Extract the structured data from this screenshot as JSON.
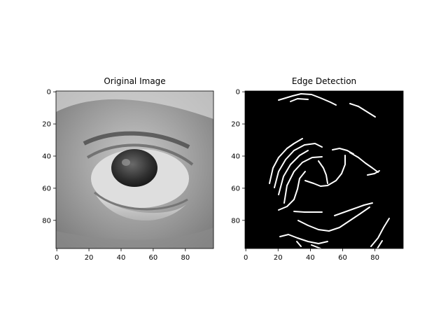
{
  "figure": {
    "panels": [
      {
        "title": "Original Image",
        "kind": "photo",
        "xticks": [
          "0",
          "20",
          "40",
          "60",
          "80"
        ],
        "yticks": [
          "0",
          "20",
          "40",
          "60",
          "80"
        ]
      },
      {
        "title": "Edge Detection",
        "kind": "edges",
        "xticks": [
          "0",
          "20",
          "40",
          "60",
          "80"
        ],
        "yticks": [
          "0",
          "20",
          "40",
          "60",
          "80"
        ]
      }
    ],
    "tick_values": [
      0,
      20,
      40,
      60,
      80
    ],
    "image_size": 98,
    "colors": {
      "background": "#ffffff",
      "edge_bg": "#000000",
      "edge_line": "#ffffff"
    }
  }
}
